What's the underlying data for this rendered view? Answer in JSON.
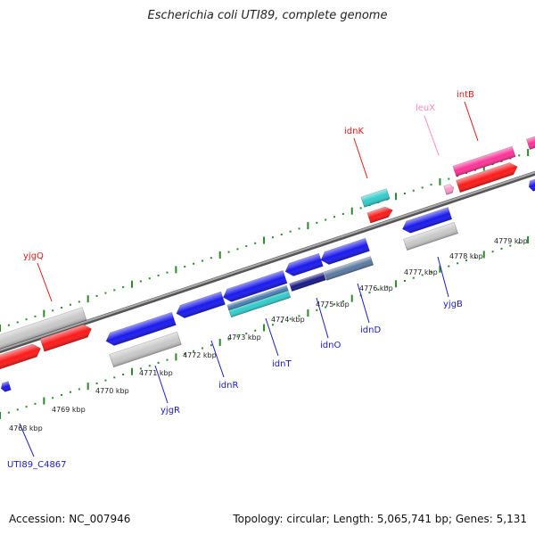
{
  "title": "Escherichia coli UTI89, complete genome",
  "footer": {
    "accession": "Accession: NC_007946",
    "summary": "Topology: circular; Length: 5,065,741 bp; Genes: 5,131"
  },
  "scale_labels": [
    "4768 kbp",
    "4769 kbp",
    "4770 kbp",
    "4771 kbp",
    "4772 kbp",
    "4773 kbp",
    "4774 kbp",
    "4775 kbp",
    "4776 kbp",
    "4777 kbp",
    "4778 kbp",
    "4779 kbp"
  ],
  "gene_labels": [
    "yjgQ",
    "idnK",
    "leuX",
    "intB",
    "UTI89_C4867",
    "yjgR",
    "idnR",
    "idnT",
    "idnO",
    "idnD",
    "yjgB"
  ],
  "colors": {
    "forward_cds": "#ff1a1a",
    "reverse_cds": "#1a1aee",
    "pseudo": "#c8c8c8",
    "idnK_gene": "#33cccc",
    "trna": "#ff99cc",
    "intB_gene": "#ff3399",
    "backbone": "#888888",
    "tick": "#2a8a2a"
  }
}
